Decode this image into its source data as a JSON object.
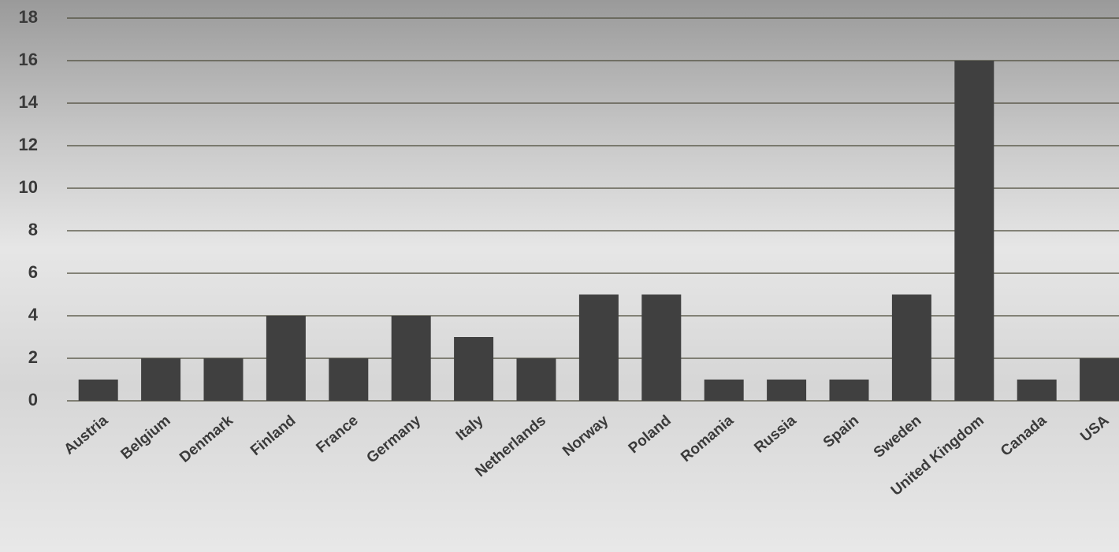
{
  "chart_data": {
    "type": "bar",
    "categories": [
      "Austria",
      "Belgium",
      "Denmark",
      "Finland",
      "France",
      "Germany",
      "Italy",
      "Netherlands",
      "Norway",
      "Poland",
      "Romania",
      "Russia",
      "Spain",
      "Sweden",
      "United Kingdom",
      "Canada",
      "USA"
    ],
    "values": [
      1,
      2,
      2,
      4,
      2,
      4,
      3,
      2,
      5,
      5,
      1,
      1,
      1,
      5,
      16,
      1,
      2
    ],
    "color": "#404040",
    "ylim": [
      0,
      18
    ],
    "yticks": [
      0,
      2,
      4,
      6,
      8,
      10,
      12,
      14,
      16,
      18
    ],
    "grid": true
  }
}
